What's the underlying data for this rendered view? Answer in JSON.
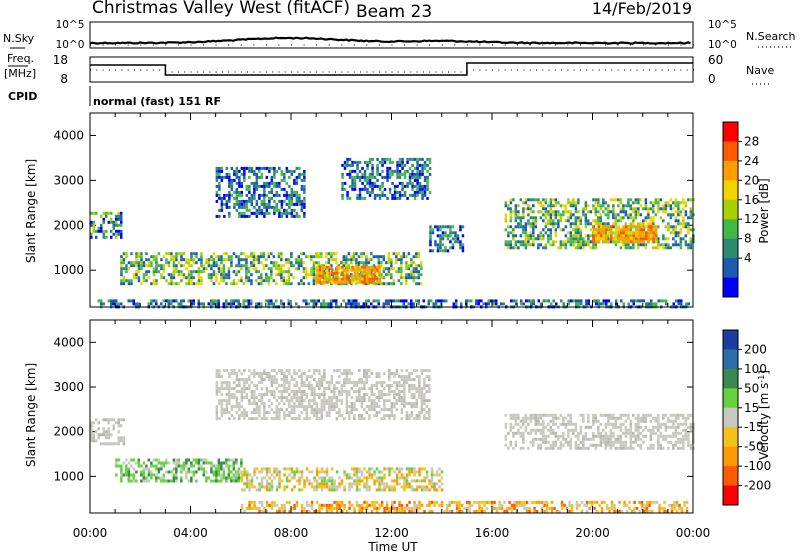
{
  "header": {
    "station": "Christmas Valley West (fitACF)",
    "beam": "Beam 23",
    "date": "14/Feb/2019"
  },
  "sky_panel": {
    "left_label": "N.Sky",
    "left_ticks": [
      "10^5",
      "10^0"
    ],
    "right_label": "N.Search",
    "right_ticks": [
      "10^5",
      "10^0"
    ]
  },
  "freq_panel": {
    "left_label_line1": "Freq.",
    "left_label_line2": "[MHz]",
    "left_ticks": [
      "18",
      "8"
    ],
    "right_label": "Nave",
    "right_ticks": [
      "60",
      "0"
    ],
    "cpid_label": "CPID",
    "cpid_text": "normal (fast) 151 RF"
  },
  "chart_data": [
    {
      "type": "heatmap",
      "panel": "power",
      "ylabel": "Slant Range [km]",
      "y_ticks": [
        1000,
        2000,
        3000,
        4000
      ],
      "ylim": [
        180,
        4500
      ],
      "x_ticks": [
        "00:00",
        "04:00",
        "08:00",
        "12:00",
        "16:00",
        "20:00",
        "00:00"
      ],
      "xlim_hours": [
        0,
        24
      ],
      "colorbar": {
        "label": "Power [dB]",
        "ticks": [
          "28",
          "24",
          "20",
          "16",
          "12",
          "8",
          "4"
        ],
        "colors": [
          "#ff0000",
          "#ff5a00",
          "#ff9c00",
          "#f2d200",
          "#a8d000",
          "#42b846",
          "#2c8a72",
          "#1c5cb0",
          "#0000ff"
        ]
      },
      "echo_regions": [
        {
          "name": "near-range band 0-24 UT",
          "t_start": 0.3,
          "t_end": 23.8,
          "range_km": [
            200,
            350
          ],
          "level": "low"
        },
        {
          "name": "morning band",
          "t_start": 0.0,
          "t_end": 1.2,
          "range_km": [
            1700,
            2300
          ],
          "level": "mid"
        },
        {
          "name": "main band",
          "t_start": 1.2,
          "t_end": 13.2,
          "range_km": [
            700,
            1400
          ],
          "level": "mid-high"
        },
        {
          "name": "main band peak",
          "t_start": 9.0,
          "t_end": 11.5,
          "range_km": [
            750,
            1100
          ],
          "level": "high"
        },
        {
          "name": "upper arc",
          "t_start": 5.0,
          "t_end": 8.5,
          "range_km": [
            2200,
            3300
          ],
          "level": "low"
        },
        {
          "name": "rising arc",
          "t_start": 10.0,
          "t_end": 13.5,
          "range_km": [
            2600,
            3500
          ],
          "level": "low"
        },
        {
          "name": "afternoon streak",
          "t_start": 13.5,
          "t_end": 14.8,
          "range_km": [
            1400,
            2000
          ],
          "level": "low"
        },
        {
          "name": "evening band",
          "t_start": 16.5,
          "t_end": 24.0,
          "range_km": [
            1500,
            2600
          ],
          "level": "mid-high"
        },
        {
          "name": "evening peak",
          "t_start": 20.0,
          "t_end": 22.5,
          "range_km": [
            1650,
            2000
          ],
          "level": "high"
        }
      ]
    },
    {
      "type": "heatmap",
      "panel": "velocity",
      "ylabel": "Slant Range [km]",
      "y_ticks": [
        1000,
        2000,
        3000,
        4000
      ],
      "ylim": [
        180,
        4500
      ],
      "x_ticks": [
        "00:00",
        "04:00",
        "08:00",
        "12:00",
        "16:00",
        "20:00",
        "00:00"
      ],
      "xlim_hours": [
        0,
        24
      ],
      "xlabel": "Time UT",
      "colorbar": {
        "label": "Velocity [m s-1]",
        "label_main": "Velocity [m s",
        "label_sup": "-1",
        "label_end": "]",
        "ticks": [
          "200",
          "100",
          "50",
          "15",
          "-15",
          "-50",
          "-100",
          "-200"
        ],
        "colors": [
          "#1c3ca0",
          "#2c6aa8",
          "#3a8a50",
          "#66d23c",
          "#c8c8c0",
          "#f2c21a",
          "#ff9a00",
          "#ff5a00",
          "#ff0000"
        ]
      },
      "echo_regions": [
        {
          "name": "near-range band",
          "t_start": 6.0,
          "t_end": 23.8,
          "range_km": [
            200,
            450
          ],
          "velocity": "negative"
        },
        {
          "name": "morning band",
          "t_start": 0.0,
          "t_end": 1.3,
          "range_km": [
            1700,
            2300
          ],
          "velocity": "ground scatter"
        },
        {
          "name": "main band west",
          "t_start": 1.0,
          "t_end": 6.0,
          "range_km": [
            900,
            1400
          ],
          "velocity": "positive"
        },
        {
          "name": "main band mid",
          "t_start": 6.0,
          "t_end": 14.0,
          "range_km": [
            700,
            1200
          ],
          "velocity": "mixed"
        },
        {
          "name": "upper arcs",
          "t_start": 5.0,
          "t_end": 13.5,
          "range_km": [
            2300,
            3400
          ],
          "velocity": "ground scatter"
        },
        {
          "name": "evening band",
          "t_start": 16.5,
          "t_end": 24.0,
          "range_km": [
            1600,
            2400
          ],
          "velocity": "ground scatter"
        }
      ]
    }
  ]
}
